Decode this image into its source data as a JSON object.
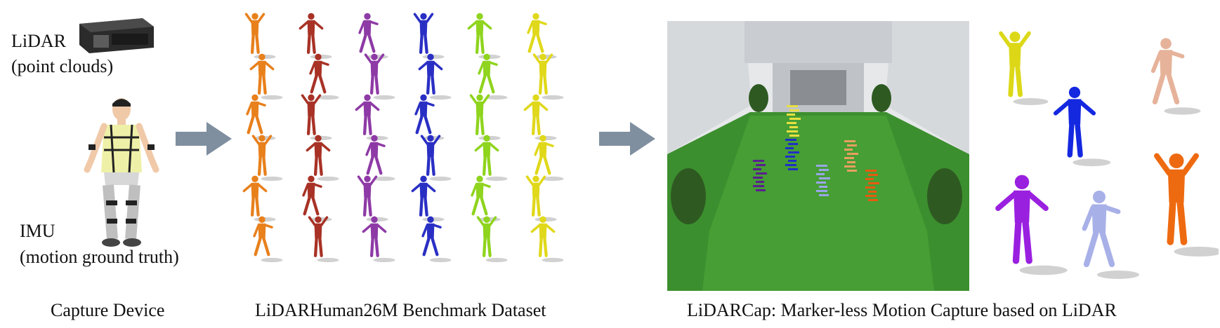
{
  "device_labels": {
    "lidar_title": "LiDAR",
    "lidar_sub": "(point clouds)",
    "imu_title": "IMU",
    "imu_sub": "(motion ground truth)"
  },
  "captions": {
    "capture": "Capture Device",
    "dataset": "LiDARHuman26M Benchmark Dataset",
    "method": "LiDARCap: Marker-less Motion Capture based on LiDAR"
  },
  "colors": {
    "arrow": "#7f8fa0",
    "columns": [
      "#e8801c",
      "#a83226",
      "#8e3aa6",
      "#2a2fc4",
      "#8fd41e",
      "#e0d81a"
    ],
    "grass": "#3c8f2e",
    "point_people": [
      "#5a1f8f",
      "#2030c8",
      "#9aa6e8",
      "#e8a060",
      "#e85a10",
      "#e8e040"
    ],
    "meshes": [
      "#dcd818",
      "#1428e0",
      "#e6b39a",
      "#9a20e0",
      "#a8b0e8",
      "#ee6a10"
    ]
  },
  "icons": [
    "lidar-device-icon",
    "person-wearing-imu-icon",
    "right-arrow-icon"
  ]
}
